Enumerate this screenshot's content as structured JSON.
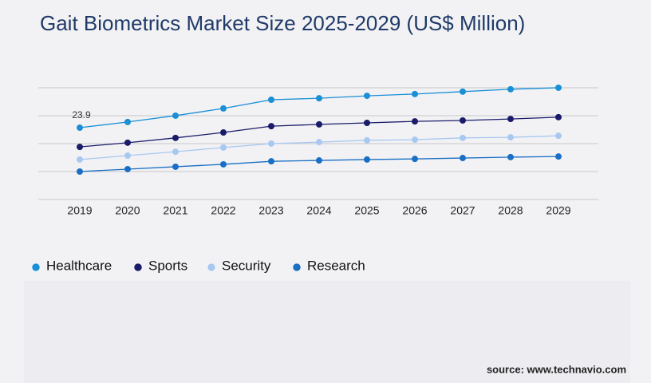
{
  "chart_data": {
    "type": "line",
    "title": "Gait Biometrics Market Size 2025-2029 (US$ Million)",
    "categories": [
      "2019",
      "2020",
      "2021",
      "2022",
      "2023",
      "2024",
      "2025",
      "2026",
      "2027",
      "2028",
      "2029"
    ],
    "series": [
      {
        "name": "Healthcare",
        "color": "#1a8fd6",
        "values": [
          23.9,
          25.8,
          27.9,
          30.3,
          33.2,
          33.7,
          34.5,
          35.1,
          35.9,
          36.7,
          37.2
        ],
        "value_labels": [
          "23.9",
          null,
          null,
          null,
          null,
          null,
          null,
          null,
          null,
          null,
          null
        ]
      },
      {
        "name": "Sports",
        "color": "#1b1b6b",
        "values": [
          17.5,
          18.9,
          20.5,
          22.3,
          24.4,
          25.0,
          25.5,
          26.0,
          26.3,
          26.8,
          27.4
        ]
      },
      {
        "name": "Security",
        "color": "#a8c8f2",
        "values": [
          13.3,
          14.6,
          15.9,
          17.3,
          18.6,
          19.1,
          19.7,
          19.9,
          20.5,
          20.7,
          21.2
        ]
      },
      {
        "name": "Research",
        "color": "#1a6fc4",
        "values": [
          9.3,
          10.1,
          10.9,
          11.7,
          12.7,
          13.0,
          13.3,
          13.5,
          13.8,
          14.1,
          14.3
        ]
      }
    ],
    "ylim": [
      0,
      40
    ],
    "yticks": [
      0,
      9.3,
      18.6,
      27.9,
      37.2
    ],
    "grid": true,
    "source": "source: www.technavio.com"
  }
}
